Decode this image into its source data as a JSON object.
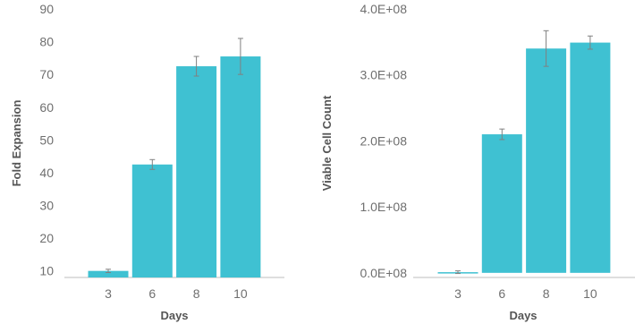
{
  "colors": {
    "bar": "#3fc1d2",
    "axis": "#bdbdbd",
    "errorbar": "#808080",
    "text": "#6f6f6f",
    "title": "#555555"
  },
  "chart_data": [
    {
      "type": "bar",
      "categories": [
        "3",
        "6",
        "8",
        "10"
      ],
      "values": [
        10,
        42.5,
        72.5,
        75.5
      ],
      "error": [
        0.5,
        1.5,
        3,
        5.5
      ],
      "xlabel": "Days",
      "ylabel": "Fold Expansion",
      "ylim": [
        8,
        90
      ],
      "yticks": [
        10,
        20,
        30,
        40,
        50,
        60,
        70,
        80,
        90
      ],
      "ytick_labels": [
        "10",
        "20",
        "30",
        "40",
        "50",
        "60",
        "70",
        "80",
        "90"
      ],
      "grid": false
    },
    {
      "type": "bar",
      "categories": [
        "3",
        "6",
        "8",
        "10"
      ],
      "values": [
        1000000,
        210000000,
        340000000,
        349000000
      ],
      "error": [
        2000000,
        8000000,
        27000000,
        10000000
      ],
      "xlabel": "Days",
      "ylabel": "Viable Cell Count",
      "ylim": [
        -7000000,
        400000000
      ],
      "yticks": [
        0,
        100000000,
        200000000,
        300000000,
        400000000
      ],
      "ytick_labels": [
        "0.0E+08",
        "1.0E+08",
        "2.0E+08",
        "3.0E+08",
        "4.0E+08"
      ],
      "grid": false
    }
  ]
}
